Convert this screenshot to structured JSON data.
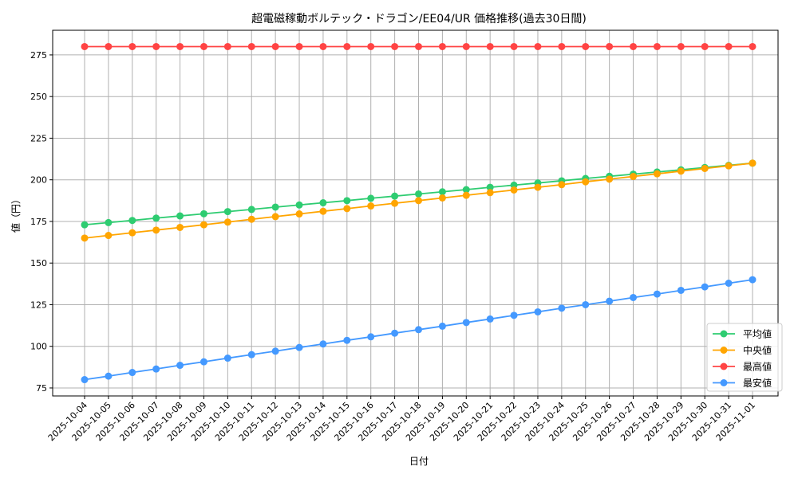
{
  "chart_data": {
    "type": "line",
    "title": "超電磁稼動ボルテック・ドラゴン/EE04/UR 価格推移(過去30日間)",
    "xlabel": "日付",
    "ylabel": "値（円）",
    "ylim": [
      70.2,
      289.8
    ],
    "yticks": [
      75,
      100,
      125,
      150,
      175,
      200,
      225,
      250,
      275
    ],
    "grid": true,
    "legend_position": "lower-right",
    "x": [
      "2025-10-04",
      "2025-10-05",
      "2025-10-06",
      "2025-10-07",
      "2025-10-08",
      "2025-10-09",
      "2025-10-10",
      "2025-10-11",
      "2025-10-12",
      "2025-10-13",
      "2025-10-14",
      "2025-10-15",
      "2025-10-16",
      "2025-10-17",
      "2025-10-18",
      "2025-10-19",
      "2025-10-20",
      "2025-10-21",
      "2025-10-22",
      "2025-10-23",
      "2025-10-24",
      "2025-10-25",
      "2025-10-26",
      "2025-10-27",
      "2025-10-28",
      "2025-10-29",
      "2025-10-30",
      "2025-10-31",
      "2025-11-01"
    ],
    "series": [
      {
        "name": "平均値",
        "color": "#2ecc71",
        "values": [
          173,
          174.3,
          175.6,
          177,
          178.3,
          179.6,
          180.9,
          182.2,
          183.6,
          184.9,
          186.2,
          187.5,
          188.9,
          190.2,
          191.5,
          192.8,
          194.1,
          195.5,
          196.8,
          198.1,
          199.4,
          200.8,
          202.1,
          203.4,
          204.7,
          206,
          207.4,
          208.7,
          210
        ]
      },
      {
        "name": "中央値",
        "color": "#ffa500",
        "values": [
          165,
          166.6,
          168.2,
          169.8,
          171.4,
          173,
          174.6,
          176.3,
          177.9,
          179.5,
          181.1,
          182.7,
          184.3,
          185.9,
          187.5,
          189.1,
          190.7,
          192.3,
          193.9,
          195.5,
          197.1,
          198.8,
          200.4,
          202,
          203.6,
          205.2,
          206.8,
          208.4,
          210
        ]
      },
      {
        "name": "最高値",
        "color": "#ff4444",
        "values": [
          280,
          280,
          280,
          280,
          280,
          280,
          280,
          280,
          280,
          280,
          280,
          280,
          280,
          280,
          280,
          280,
          280,
          280,
          280,
          280,
          280,
          280,
          280,
          280,
          280,
          280,
          280,
          280,
          280
        ]
      },
      {
        "name": "最安値",
        "color": "#4499ff",
        "values": [
          80,
          82.1,
          84.3,
          86.4,
          88.6,
          90.7,
          92.9,
          95,
          97.1,
          99.3,
          101.4,
          103.6,
          105.7,
          107.9,
          110,
          112.1,
          114.3,
          116.4,
          118.6,
          120.7,
          122.9,
          125,
          127.1,
          129.3,
          131.4,
          133.6,
          135.7,
          137.9,
          140
        ]
      }
    ]
  }
}
